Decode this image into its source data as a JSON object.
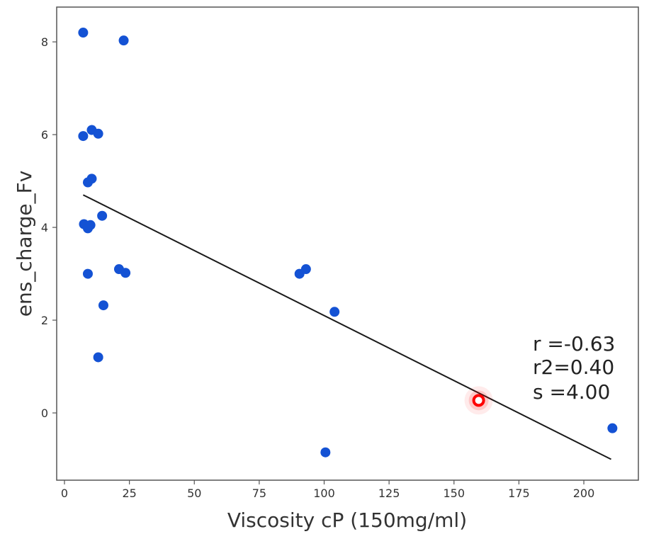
{
  "chart_data": {
    "type": "scatter",
    "title": "",
    "xlabel": "Viscosity cP (150mg/ml)",
    "ylabel": "ens_charge_Fv",
    "xlim": [
      -3,
      221
    ],
    "ylim": [
      -1.45,
      8.75
    ],
    "x_ticks": [
      0,
      25,
      50,
      75,
      100,
      125,
      150,
      175,
      200
    ],
    "y_ticks": [
      0,
      2,
      4,
      6,
      8
    ],
    "grid": false,
    "colors": {
      "points": "#1452d4",
      "fit_line": "#1a1a1a",
      "highlight": "#ff0000",
      "frame": "#555555"
    },
    "points": [
      {
        "x": 7.2,
        "y": 8.2
      },
      {
        "x": 22.8,
        "y": 8.03
      },
      {
        "x": 7.2,
        "y": 5.97
      },
      {
        "x": 10.5,
        "y": 6.1
      },
      {
        "x": 13,
        "y": 6.02
      },
      {
        "x": 9,
        "y": 4.97
      },
      {
        "x": 10.5,
        "y": 5.05
      },
      {
        "x": 7.5,
        "y": 4.07
      },
      {
        "x": 9,
        "y": 3.98
      },
      {
        "x": 10,
        "y": 4.05
      },
      {
        "x": 14.5,
        "y": 4.25
      },
      {
        "x": 9,
        "y": 3.0
      },
      {
        "x": 21,
        "y": 3.1
      },
      {
        "x": 23.5,
        "y": 3.02
      },
      {
        "x": 15,
        "y": 2.32
      },
      {
        "x": 13,
        "y": 1.2
      },
      {
        "x": 90.5,
        "y": 3.0
      },
      {
        "x": 93,
        "y": 3.1
      },
      {
        "x": 104,
        "y": 2.18
      },
      {
        "x": 100.5,
        "y": -0.85
      },
      {
        "x": 211,
        "y": -0.33
      }
    ],
    "highlight_point": {
      "x": 159.5,
      "y": 0.27
    },
    "fit_line": {
      "x": [
        7.2,
        210.5
      ],
      "y": [
        4.7,
        -1.0
      ]
    },
    "annotations": [
      "r =-0.63",
      "r2=0.40",
      "s =4.00"
    ]
  }
}
